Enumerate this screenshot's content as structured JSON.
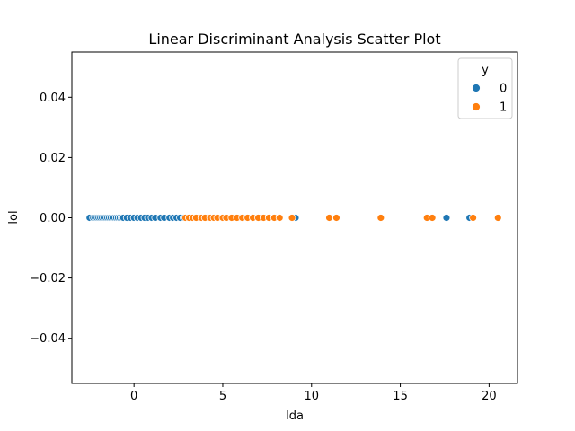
{
  "chart_data": {
    "type": "scatter",
    "title": "Linear Discriminant Analysis Scatter Plot",
    "xlabel": "lda",
    "ylabel": "lol",
    "xlim": [
      -3.5,
      21.6
    ],
    "ylim": [
      -0.055,
      0.055
    ],
    "xticks": [
      0,
      5,
      10,
      15,
      20
    ],
    "yticks": [
      -0.04,
      -0.02,
      0.0,
      0.02,
      0.04
    ],
    "xtick_labels": [
      "0",
      "5",
      "10",
      "15",
      "20"
    ],
    "ytick_labels": [
      "−0.04",
      "−0.02",
      "0.00",
      "0.02",
      "0.04"
    ],
    "grid": false,
    "legend": {
      "title": "y",
      "position": "top-right"
    },
    "series": [
      {
        "name": "0",
        "color": "#1f77b4",
        "x": [
          -2.5,
          -2.3,
          -2.2,
          -2.1,
          -2.0,
          -1.9,
          -1.8,
          -1.7,
          -1.6,
          -1.5,
          -1.4,
          -1.3,
          -1.2,
          -1.1,
          -1.0,
          -0.9,
          -0.8,
          -0.7,
          -0.6,
          -0.4,
          -0.2,
          0.0,
          0.2,
          0.4,
          0.6,
          0.8,
          1.0,
          1.2,
          1.5,
          1.7,
          2.0,
          2.2,
          2.4,
          2.6,
          2.8,
          6.0,
          6.2,
          9.1,
          17.6,
          18.9
        ],
        "y": [
          0,
          0,
          0,
          0,
          0,
          0,
          0,
          0,
          0,
          0,
          0,
          0,
          0,
          0,
          0,
          0,
          0,
          0,
          0,
          0,
          0,
          0,
          0,
          0,
          0,
          0,
          0,
          0,
          0,
          0,
          0,
          0,
          0,
          0,
          0,
          0,
          0,
          0,
          0,
          0
        ]
      },
      {
        "name": "1",
        "color": "#ff7f0e",
        "x": [
          2.9,
          3.1,
          3.3,
          3.5,
          3.8,
          4.0,
          4.3,
          4.5,
          4.7,
          5.0,
          5.2,
          5.5,
          5.8,
          6.1,
          6.4,
          6.7,
          7.0,
          7.3,
          7.6,
          7.9,
          8.2,
          8.9,
          11.0,
          11.4,
          13.9,
          16.5,
          16.8,
          19.1,
          20.5
        ],
        "y": [
          0,
          0,
          0,
          0,
          0,
          0,
          0,
          0,
          0,
          0,
          0,
          0,
          0,
          0,
          0,
          0,
          0,
          0,
          0,
          0,
          0,
          0,
          0,
          0,
          0,
          0,
          0,
          0,
          0
        ]
      }
    ]
  }
}
